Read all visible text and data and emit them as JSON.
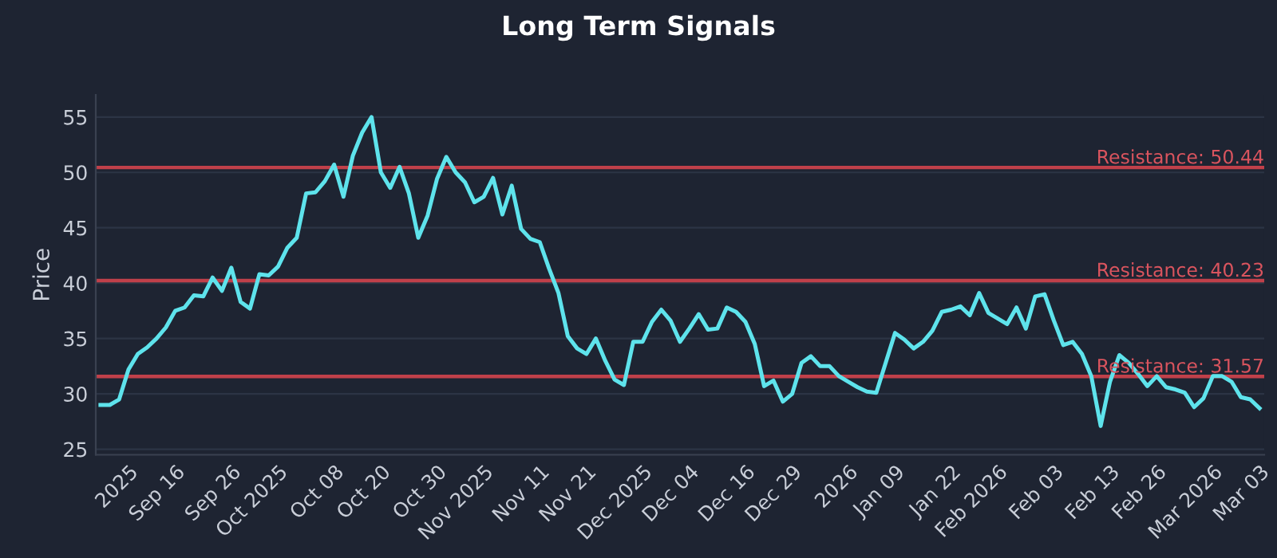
{
  "chart_data": {
    "type": "line",
    "title": "Long Term Signals",
    "ylabel": "Price",
    "categories": [
      null,
      null,
      null,
      "2025",
      null,
      null,
      null,
      null,
      "Sep 16",
      null,
      null,
      null,
      null,
      null,
      "Sep 26",
      null,
      null,
      null,
      null,
      "Oct 2025",
      null,
      null,
      null,
      null,
      null,
      "Oct 08",
      null,
      null,
      null,
      null,
      "Oct 20",
      null,
      null,
      null,
      null,
      null,
      "Oct 30",
      null,
      null,
      null,
      null,
      "Nov 2025",
      null,
      null,
      null,
      null,
      null,
      "Nov 11",
      null,
      null,
      null,
      null,
      "Nov 21",
      null,
      null,
      null,
      null,
      null,
      "Dec 2025",
      null,
      null,
      null,
      null,
      "Dec 04",
      null,
      null,
      null,
      null,
      null,
      "Dec 16",
      null,
      null,
      null,
      null,
      "Dec 29",
      null,
      null,
      null,
      null,
      null,
      "2026",
      null,
      null,
      null,
      null,
      "Jan 09",
      null,
      null,
      null,
      null,
      null,
      "Jan 22",
      null,
      null,
      null,
      null,
      "Feb 2026",
      null,
      null,
      null,
      null,
      null,
      "Feb 03",
      null,
      null,
      null,
      null,
      null,
      "Feb 13",
      null,
      null,
      null,
      null,
      "Feb 26",
      null,
      null,
      null,
      null,
      null,
      "Mar 2026",
      null,
      null,
      null,
      null,
      "Mar 03"
    ],
    "series": [
      {
        "color": "#5ee3ec",
        "values": [
          29.0,
          29.0,
          29.5,
          32.2,
          33.6,
          34.2,
          35.0,
          36.0,
          37.5,
          37.8,
          38.9,
          38.8,
          40.5,
          39.3,
          41.4,
          38.3,
          37.7,
          40.8,
          40.7,
          41.5,
          43.2,
          44.1,
          48.1,
          48.2,
          49.2,
          50.7,
          47.8,
          51.5,
          53.6,
          55.0,
          50.0,
          48.6,
          50.5,
          48.1,
          44.1,
          46.1,
          49.4,
          51.4,
          50.0,
          49.1,
          47.3,
          47.8,
          49.5,
          46.2,
          48.8,
          44.9,
          44.0,
          43.7,
          41.3,
          39.1,
          35.2,
          34.1,
          33.6,
          35.0,
          33.0,
          31.3,
          30.8,
          34.7,
          34.7,
          36.5,
          37.6,
          36.6,
          34.7,
          35.9,
          37.2,
          35.8,
          35.9,
          37.8,
          37.4,
          36.5,
          34.5,
          30.7,
          31.2,
          29.3,
          30.0,
          32.8,
          33.4,
          32.5,
          32.5,
          31.6,
          31.1,
          30.6,
          30.2,
          30.1,
          32.8,
          35.5,
          34.9,
          34.1,
          34.7,
          35.7,
          37.4,
          37.6,
          37.9,
          37.1,
          39.1,
          37.3,
          36.8,
          36.3,
          37.8,
          35.9,
          38.8,
          39.0,
          36.6,
          34.4,
          34.7,
          33.6,
          31.6,
          27.1,
          31.1,
          33.5,
          32.8,
          31.8,
          30.7,
          31.6,
          30.6,
          30.4,
          30.1,
          28.8,
          29.6,
          31.6,
          31.6,
          31.1,
          29.7,
          29.5,
          28.7
        ]
      }
    ],
    "ylim": [
      24.5,
      57
    ],
    "yticks": [
      25,
      30,
      35,
      40,
      45,
      50,
      55
    ],
    "grid": "y",
    "line_style": "solid",
    "marker": "none",
    "ref_lines": [
      {
        "axis": "y",
        "value": 50.44,
        "label": "Resistance: 50.44",
        "color": "#c0404a"
      },
      {
        "axis": "y",
        "value": 40.23,
        "label": "Resistance: 40.23",
        "color": "#c0404a"
      },
      {
        "axis": "y",
        "value": 31.57,
        "label": "Resistance: 31.57",
        "color": "#c0404a"
      }
    ]
  }
}
